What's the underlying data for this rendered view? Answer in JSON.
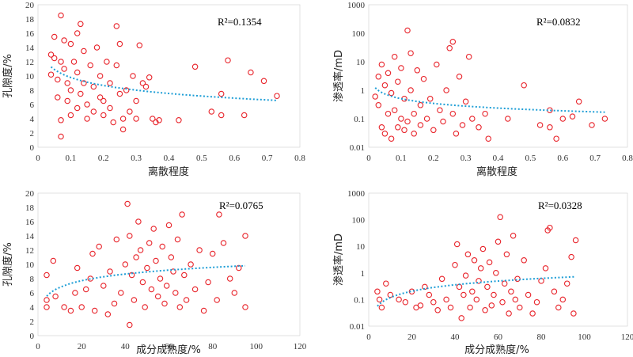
{
  "chart_data": [
    {
      "type": "scatter",
      "xlabel": "离散程度",
      "ylabel": "孔隙度/%",
      "xlim": [
        0,
        0.8
      ],
      "ylim": [
        0,
        20
      ],
      "xticks": [
        "0",
        "0.1",
        "0.2",
        "0.3",
        "0.4",
        "0.5",
        "0.6",
        "0.7",
        "0.8"
      ],
      "yticks": [
        "0",
        "2",
        "4",
        "6",
        "8",
        "10",
        "12",
        "14",
        "16",
        "18",
        "20"
      ],
      "r2_label": "R²=0.1354",
      "trend": "logarithmic",
      "log_y": false,
      "points": [
        [
          0.04,
          10.2
        ],
        [
          0.04,
          13.0
        ],
        [
          0.05,
          12.5
        ],
        [
          0.05,
          15.5
        ],
        [
          0.06,
          9.5
        ],
        [
          0.06,
          7.0
        ],
        [
          0.07,
          18.5
        ],
        [
          0.07,
          12.0
        ],
        [
          0.07,
          1.5
        ],
        [
          0.07,
          3.8
        ],
        [
          0.08,
          15.0
        ],
        [
          0.08,
          11.0
        ],
        [
          0.09,
          9.0
        ],
        [
          0.09,
          6.5
        ],
        [
          0.1,
          14.5
        ],
        [
          0.1,
          8.0
        ],
        [
          0.1,
          4.5
        ],
        [
          0.11,
          12.0
        ],
        [
          0.12,
          16.0
        ],
        [
          0.12,
          10.5
        ],
        [
          0.12,
          5.5
        ],
        [
          0.13,
          17.3
        ],
        [
          0.13,
          7.5
        ],
        [
          0.14,
          13.5
        ],
        [
          0.14,
          9.0
        ],
        [
          0.15,
          6.0
        ],
        [
          0.15,
          4.0
        ],
        [
          0.16,
          11.5
        ],
        [
          0.17,
          8.5
        ],
        [
          0.17,
          5.0
        ],
        [
          0.18,
          14.0
        ],
        [
          0.19,
          10.0
        ],
        [
          0.19,
          7.0
        ],
        [
          0.2,
          6.5
        ],
        [
          0.2,
          4.5
        ],
        [
          0.21,
          12.0
        ],
        [
          0.22,
          9.0
        ],
        [
          0.22,
          5.5
        ],
        [
          0.23,
          3.5
        ],
        [
          0.24,
          17.0
        ],
        [
          0.24,
          11.5
        ],
        [
          0.25,
          14.5
        ],
        [
          0.25,
          7.5
        ],
        [
          0.26,
          4.0
        ],
        [
          0.26,
          2.5
        ],
        [
          0.27,
          8.0
        ],
        [
          0.28,
          5.0
        ],
        [
          0.29,
          10.0
        ],
        [
          0.3,
          6.5
        ],
        [
          0.3,
          4.0
        ],
        [
          0.31,
          14.3
        ],
        [
          0.32,
          9.0
        ],
        [
          0.33,
          8.5
        ],
        [
          0.34,
          9.8
        ],
        [
          0.35,
          4.0
        ],
        [
          0.36,
          3.5
        ],
        [
          0.37,
          3.8
        ],
        [
          0.43,
          3.8
        ],
        [
          0.48,
          11.3
        ],
        [
          0.53,
          5.0
        ],
        [
          0.56,
          4.5
        ],
        [
          0.56,
          7.5
        ],
        [
          0.58,
          12.2
        ],
        [
          0.63,
          4.5
        ],
        [
          0.65,
          10.5
        ],
        [
          0.69,
          9.3
        ],
        [
          0.73,
          7.2
        ]
      ]
    },
    {
      "type": "scatter",
      "xlabel": "离散程度",
      "ylabel": "渗透率/mD",
      "xlim": [
        0,
        0.8
      ],
      "ylim": [
        0.01,
        1000
      ],
      "xticks": [
        "0",
        "0.1",
        "0.2",
        "0.3",
        "0.4",
        "0.5",
        "0.6",
        "0.7",
        "0.8"
      ],
      "yticks": [
        "0.01",
        "0.1",
        "1",
        "10",
        "100",
        "1000"
      ],
      "r2_label": "R²=0.0832",
      "trend": "logarithmic",
      "log_y": true,
      "points": [
        [
          0.02,
          0.6
        ],
        [
          0.03,
          3.0
        ],
        [
          0.03,
          0.3
        ],
        [
          0.04,
          8.0
        ],
        [
          0.04,
          0.05
        ],
        [
          0.05,
          0.03
        ],
        [
          0.05,
          1.5
        ],
        [
          0.06,
          0.15
        ],
        [
          0.06,
          4.0
        ],
        [
          0.07,
          0.02
        ],
        [
          0.07,
          0.8
        ],
        [
          0.08,
          15.0
        ],
        [
          0.08,
          0.2
        ],
        [
          0.09,
          0.05
        ],
        [
          0.09,
          2.0
        ],
        [
          0.1,
          0.1
        ],
        [
          0.1,
          6.0
        ],
        [
          0.11,
          0.04
        ],
        [
          0.11,
          0.5
        ],
        [
          0.12,
          125.0
        ],
        [
          0.12,
          0.08
        ],
        [
          0.13,
          20.0
        ],
        [
          0.13,
          1.0
        ],
        [
          0.14,
          0.15
        ],
        [
          0.14,
          0.03
        ],
        [
          0.15,
          5.0
        ],
        [
          0.16,
          0.3
        ],
        [
          0.16,
          0.06
        ],
        [
          0.17,
          2.5
        ],
        [
          0.18,
          0.1
        ],
        [
          0.19,
          0.5
        ],
        [
          0.2,
          0.04
        ],
        [
          0.21,
          8.0
        ],
        [
          0.22,
          0.2
        ],
        [
          0.23,
          0.08
        ],
        [
          0.24,
          1.0
        ],
        [
          0.25,
          30.0
        ],
        [
          0.26,
          50.0
        ],
        [
          0.26,
          0.15
        ],
        [
          0.27,
          0.03
        ],
        [
          0.28,
          3.0
        ],
        [
          0.29,
          0.06
        ],
        [
          0.3,
          0.4
        ],
        [
          0.31,
          15.0
        ],
        [
          0.32,
          0.1
        ],
        [
          0.34,
          0.05
        ],
        [
          0.36,
          0.15
        ],
        [
          0.37,
          0.02
        ],
        [
          0.43,
          0.1
        ],
        [
          0.48,
          1.5
        ],
        [
          0.53,
          0.06
        ],
        [
          0.56,
          0.2
        ],
        [
          0.56,
          0.05
        ],
        [
          0.58,
          0.02
        ],
        [
          0.6,
          0.1
        ],
        [
          0.63,
          0.12
        ],
        [
          0.65,
          0.4
        ],
        [
          0.69,
          0.06
        ],
        [
          0.73,
          0.1
        ]
      ]
    },
    {
      "type": "scatter",
      "xlabel": "成分成熟度/%",
      "ylabel": "孔隙度/%",
      "xlim": [
        0,
        120
      ],
      "ylim": [
        0,
        20
      ],
      "xticks": [
        "0",
        "20",
        "40",
        "60",
        "80",
        "100",
        "120"
      ],
      "yticks": [
        "0",
        "2",
        "4",
        "6",
        "8",
        "10",
        "12",
        "14",
        "16",
        "18",
        "20"
      ],
      "r2_label": "R²=0.0765",
      "trend": "logarithmic",
      "log_y": false,
      "points": [
        [
          4,
          5.0
        ],
        [
          4,
          8.5
        ],
        [
          4,
          4.0
        ],
        [
          7,
          10.5
        ],
        [
          8,
          5.5
        ],
        [
          12,
          4.0
        ],
        [
          15,
          3.5
        ],
        [
          17,
          6.0
        ],
        [
          18,
          9.5
        ],
        [
          20,
          4.0
        ],
        [
          22,
          6.5
        ],
        [
          24,
          8.0
        ],
        [
          25,
          11.5
        ],
        [
          26,
          3.5
        ],
        [
          28,
          12.5
        ],
        [
          30,
          7.0
        ],
        [
          32,
          3.0
        ],
        [
          33,
          9.0
        ],
        [
          35,
          4.5
        ],
        [
          36,
          13.5
        ],
        [
          38,
          6.0
        ],
        [
          40,
          10.0
        ],
        [
          41,
          18.5
        ],
        [
          42,
          1.5
        ],
        [
          42,
          14.0
        ],
        [
          43,
          8.5
        ],
        [
          44,
          5.0
        ],
        [
          45,
          11.0
        ],
        [
          46,
          16.0
        ],
        [
          47,
          12.0
        ],
        [
          48,
          7.5
        ],
        [
          49,
          4.0
        ],
        [
          50,
          9.5
        ],
        [
          51,
          13.0
        ],
        [
          52,
          6.5
        ],
        [
          53,
          15.0
        ],
        [
          54,
          10.5
        ],
        [
          55,
          5.5
        ],
        [
          56,
          8.0
        ],
        [
          57,
          12.5
        ],
        [
          58,
          4.5
        ],
        [
          59,
          7.0
        ],
        [
          60,
          15.5
        ],
        [
          61,
          11.0
        ],
        [
          62,
          9.0
        ],
        [
          63,
          6.0
        ],
        [
          64,
          13.5
        ],
        [
          65,
          4.0
        ],
        [
          66,
          17.0
        ],
        [
          67,
          8.5
        ],
        [
          68,
          5.0
        ],
        [
          70,
          10.0
        ],
        [
          72,
          6.5
        ],
        [
          74,
          12.0
        ],
        [
          76,
          3.5
        ],
        [
          78,
          7.5
        ],
        [
          80,
          11.5
        ],
        [
          82,
          5.0
        ],
        [
          83,
          17.0
        ],
        [
          85,
          13.0
        ],
        [
          88,
          8.0
        ],
        [
          90,
          6.0
        ],
        [
          92,
          9.5
        ],
        [
          95,
          4.0
        ],
        [
          95,
          14.0
        ]
      ]
    },
    {
      "type": "scatter",
      "xlabel": "成分成熟度/%",
      "ylabel": "渗透率/mD",
      "xlim": [
        0,
        120
      ],
      "ylim": [
        0.01,
        1000
      ],
      "xticks": [
        "0",
        "20",
        "40",
        "60",
        "80",
        "100",
        "120"
      ],
      "yticks": [
        "0.01",
        "0.1",
        "1",
        "10",
        "100",
        "1000"
      ],
      "r2_label": "R²=0.0328",
      "trend": "logarithmic",
      "log_y": true,
      "points": [
        [
          4,
          0.2
        ],
        [
          5,
          0.1
        ],
        [
          6,
          0.05
        ],
        [
          8,
          0.4
        ],
        [
          10,
          0.15
        ],
        [
          14,
          0.1
        ],
        [
          17,
          0.08
        ],
        [
          20,
          0.2
        ],
        [
          22,
          0.05
        ],
        [
          24,
          0.06
        ],
        [
          26,
          0.3
        ],
        [
          28,
          0.15
        ],
        [
          30,
          0.08
        ],
        [
          32,
          0.04
        ],
        [
          34,
          0.6
        ],
        [
          36,
          0.1
        ],
        [
          38,
          0.05
        ],
        [
          40,
          2.0
        ],
        [
          41,
          12.0
        ],
        [
          42,
          0.3
        ],
        [
          43,
          0.02
        ],
        [
          44,
          0.15
        ],
        [
          45,
          0.8
        ],
        [
          46,
          5.0
        ],
        [
          47,
          0.05
        ],
        [
          48,
          0.2
        ],
        [
          49,
          3.0
        ],
        [
          50,
          0.1
        ],
        [
          51,
          0.5
        ],
        [
          52,
          1.5
        ],
        [
          53,
          8.0
        ],
        [
          54,
          0.04
        ],
        [
          55,
          0.3
        ],
        [
          56,
          2.5
        ],
        [
          57,
          0.06
        ],
        [
          58,
          0.15
        ],
        [
          59,
          1.0
        ],
        [
          60,
          15.0
        ],
        [
          61,
          125.0
        ],
        [
          62,
          0.08
        ],
        [
          63,
          0.4
        ],
        [
          64,
          5.0
        ],
        [
          65,
          0.03
        ],
        [
          66,
          0.2
        ],
        [
          67,
          25.0
        ],
        [
          68,
          0.1
        ],
        [
          69,
          0.6
        ],
        [
          70,
          0.05
        ],
        [
          72,
          3.0
        ],
        [
          74,
          0.15
        ],
        [
          76,
          0.03
        ],
        [
          78,
          0.08
        ],
        [
          80,
          0.5
        ],
        [
          82,
          1.5
        ],
        [
          83,
          40.0
        ],
        [
          84,
          50.0
        ],
        [
          86,
          0.2
        ],
        [
          88,
          0.05
        ],
        [
          90,
          0.1
        ],
        [
          92,
          0.4
        ],
        [
          94,
          4.0
        ],
        [
          95,
          0.03
        ],
        [
          96,
          17.0
        ]
      ]
    }
  ]
}
